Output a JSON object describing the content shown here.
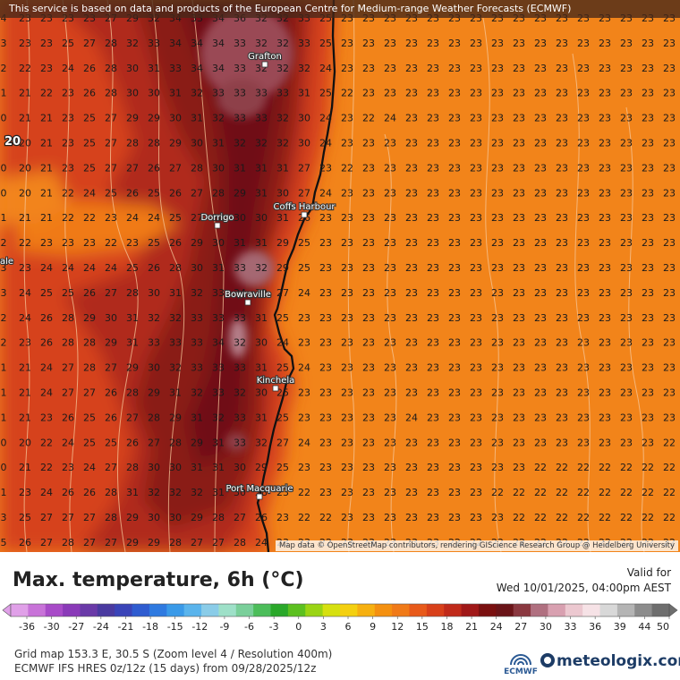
{
  "banner": "This service is based on data and products of the European Centre for Medium-range Weather Forecasts (ECMWF)",
  "attribution": "Map data © OpenStreetMap contributors, rendering GIScience Research Group @ Heidelberg University",
  "title": "Max. temperature, 6h (°C)",
  "valid_label": "Valid for",
  "valid_value": "Wed 10/01/2025, 04:00pm AEST",
  "footer_line1": "Grid map 153.3 E, 30.5 S (Zoom level 4 / Resolution 400m)",
  "footer_line2": "ECMWF IFS HRES 0z/12z (15 days) from 09/28/2025/12z",
  "logo_ecmwf": "ECMWF",
  "logo_meteologix": "meteologix.com",
  "places": [
    {
      "name": "Grafton"
    },
    {
      "name": "Coffs Harbour"
    },
    {
      "name": "Dorrigo"
    },
    {
      "name": "Bowraville"
    },
    {
      "name": "Kinchela"
    },
    {
      "name": "Port Macquarie"
    }
  ],
  "edge_labels": {
    "left_value": "20",
    "left_place_fragment": "ale"
  },
  "colorbar": {
    "labels": [
      "-36",
      "-30",
      "-27",
      "-24",
      "-21",
      "-18",
      "-15",
      "-12",
      "-9",
      "-6",
      "-3",
      "0",
      "3",
      "6",
      "9",
      "12",
      "15",
      "18",
      "21",
      "24",
      "27",
      "30",
      "33",
      "36",
      "39",
      "44",
      "50"
    ],
    "colors": [
      "#e0a0e8",
      "#c873d8",
      "#a84bc8",
      "#8a3ab8",
      "#6a3aa8",
      "#4a3aa0",
      "#3a44b8",
      "#2f5cd0",
      "#2f7ae0",
      "#3a9ae8",
      "#5ab4ec",
      "#8acce8",
      "#9ee0c8",
      "#7acf9a",
      "#4cbd5a",
      "#2aa82a",
      "#5cc020",
      "#9ad414",
      "#d6e010",
      "#f4d010",
      "#f6b010",
      "#f49010",
      "#f07a18",
      "#e85a1a",
      "#d8401a",
      "#c02a1a",
      "#a01818",
      "#7a1010",
      "#6a1418",
      "#8a3840",
      "#b07080",
      "#d8a0b0",
      "#ecc8d0",
      "#f6e2e6",
      "#d8d8d8",
      "#b4b4b4",
      "#8c8c8c",
      "#6e6e6e"
    ]
  },
  "grid": {
    "rows": [
      "4 23 23 23 23 27 29 32 34 33 34 36 32 32 33 25 23 23 23 23 23 23 23 23 23 23 23 23 23 23 23 23 23",
      "3 23 23 25 27 28 32 33 34 34 34 33 32 32 33 25 23 23 23 23 23 23 23 23 23 23 23 23 23 23 23 23 23",
      "2 22 23 24 26 28 30 31 33 34 34 33 32 32 32 24 23 23 23 23 23 23 23 23 23 23 23 23 23 23 23 23 23",
      "1 21 22 23 26 28 30 30 31 32 33 33 33 33 31 25 22 23 23 23 23 23 23 23 23 23 23 23 23 23 23 23 23",
      "0 21 21 23 25 27 29 29 30 31 32 33 33 32 30 24 23 22 24 23 23 23 23 23 23 23 23 23 23 23 23 23 23",
      "20 20 21 23 25 27 28 28 29 30 31 32 32 32 30 24 23 23 23 23 23 23 23 23 23 23 23 23 23 23 23 23 23",
      "0 20 21 23 25 27 27 26 27 28 30 31 31 31 27 23 22 23 23 23 23 23 23 23 23 23 23 23 23 23 23 23 23",
      "0 20 21 22 24 25 26 25 26 27 28 29 31 30 27 24 23 23 23 23 23 23 23 23 23 23 23 23 23 23 23 23 23",
      "1 21 21 22 22 23 24 24 25 27 28 30 30 31 26 23 23 23 23 23 23 23 23 23 23 23 23 23 23 23 23 23 23",
      "2 22 23 23 23 22 23 25 26 29 30 31 31 29 25 23 23 23 23 23 23 23 23 23 23 23 23 23 23 23 23 23 23",
      "3 23 24 24 24 24 25 26 28 30 31 33 32 29 25 23 23 23 23 23 23 23 23 23 23 23 23 23 23 23 23 23 23",
      "3 24 25 25 26 27 28 30 31 32 33 34 32 27 24 23 23 23 23 23 23 23 23 23 23 23 23 23 23 23 23 23 23",
      "2 24 26 28 29 30 31 32 32 33 33 33 31 25 23 23 23 23 23 23 23 23 23 23 23 23 23 23 23 23 23 23 23",
      "2 23 26 28 28 29 31 33 33 33 34 32 30 24 23 23 23 23 23 23 23 23 23 23 23 23 23 23 23 23 23 23 23",
      "1 21 24 27 28 27 29 30 32 33 33 33 31 25 24 23 23 23 23 23 23 23 23 23 23 23 23 23 23 23 23 23 23",
      "1 21 24 27 27 26 28 29 31 32 33 32 30 25 23 23 23 23 23 23 23 23 23 23 23 23 23 23 23 23 23 23 23",
      "1 21 23 26 25 26 27 28 29 31 32 33 31 25 23 23 23 23 23 24 23 23 23 23 23 23 23 23 23 23 23 23 23",
      "0 20 22 24 25 25 26 27 28 29 31 33 32 27 24 23 23 23 23 23 23 23 23 23 23 23 23 23 23 23 23 22 22",
      "0 21 22 23 24 27 28 30 30 31 31 30 29 25 23 23 23 23 23 23 23 23 23 23 23 22 22 22 22 22 22 22 22",
      "1 23 24 26 26 28 31 32 32 32 31 30 28 23 22 23 23 23 23 23 23 23 23 22 22 22 22 22 22 22 22 22 22",
      "3 25 27 27 27 28 29 30 30 29 28 27 26 23 22 22 23 23 23 23 23 23 23 23 22 22 22 22 22 22 22 22 22",
      "5 26 27 28 27 27 29 29 28 27 27 28 24 23 23 22 23 23 23 23 23 22 22 22 22 22 22 22 22 22 22 22 22"
    ]
  }
}
